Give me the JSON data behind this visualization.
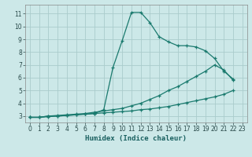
{
  "xlabel": "Humidex (Indice chaleur)",
  "background_color": "#cce8e8",
  "grid_color": "#aacccc",
  "line_color": "#1a7a6e",
  "xlim": [
    -0.5,
    23.5
  ],
  "ylim": [
    2.5,
    11.7
  ],
  "xticks": [
    0,
    1,
    2,
    3,
    4,
    5,
    6,
    7,
    8,
    9,
    10,
    11,
    12,
    13,
    14,
    15,
    16,
    17,
    18,
    19,
    20,
    21,
    22,
    23
  ],
  "yticks": [
    3,
    4,
    5,
    6,
    7,
    8,
    9,
    10,
    11
  ],
  "line1_x": [
    0,
    1,
    2,
    3,
    4,
    5,
    6,
    7,
    8,
    9,
    10,
    11,
    12,
    13,
    14,
    15,
    16,
    17,
    18,
    19,
    20,
    21,
    22
  ],
  "line1_y": [
    2.9,
    2.9,
    2.95,
    3.0,
    3.05,
    3.1,
    3.15,
    3.2,
    3.5,
    6.8,
    8.9,
    11.1,
    11.1,
    10.3,
    9.2,
    8.8,
    8.5,
    8.5,
    8.4,
    8.1,
    7.5,
    6.5,
    5.9
  ],
  "line2_x": [
    0,
    1,
    2,
    3,
    4,
    5,
    6,
    7,
    8,
    9,
    10,
    11,
    12,
    13,
    14,
    15,
    16,
    17,
    18,
    19,
    20,
    21,
    22
  ],
  "line2_y": [
    2.9,
    2.9,
    3.0,
    3.05,
    3.1,
    3.15,
    3.2,
    3.3,
    3.4,
    3.5,
    3.6,
    3.8,
    4.0,
    4.3,
    4.6,
    5.0,
    5.3,
    5.7,
    6.1,
    6.5,
    7.0,
    6.6,
    5.8
  ],
  "line3_x": [
    0,
    1,
    2,
    3,
    4,
    5,
    6,
    7,
    8,
    9,
    10,
    11,
    12,
    13,
    14,
    15,
    16,
    17,
    18,
    19,
    20,
    21,
    22
  ],
  "line3_y": [
    2.9,
    2.9,
    3.0,
    3.0,
    3.05,
    3.1,
    3.15,
    3.2,
    3.25,
    3.3,
    3.35,
    3.4,
    3.5,
    3.55,
    3.65,
    3.75,
    3.9,
    4.05,
    4.2,
    4.35,
    4.5,
    4.7,
    5.0
  ],
  "tick_fontsize": 5.5,
  "label_fontsize": 6.5
}
